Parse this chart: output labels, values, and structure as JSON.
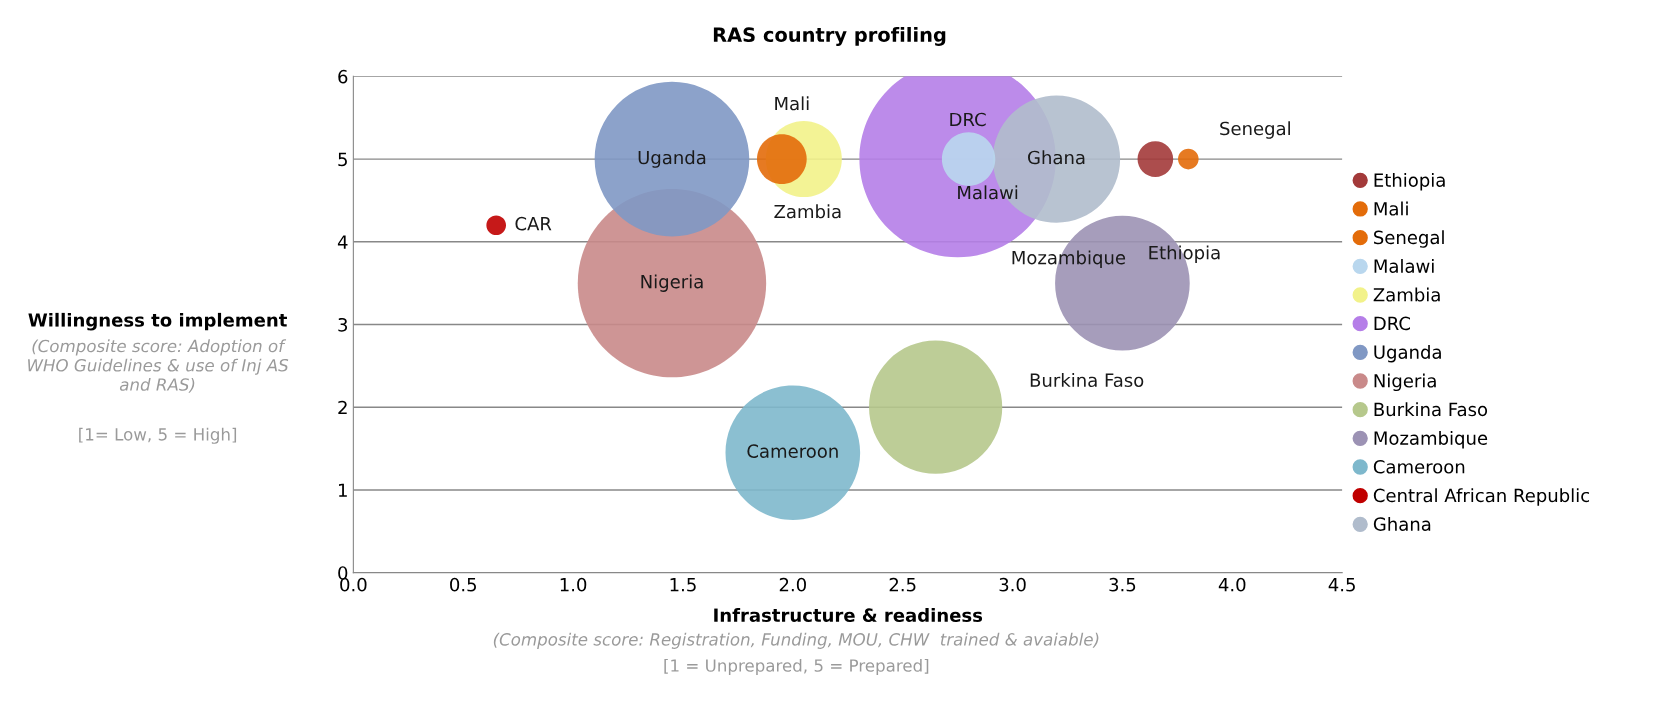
{
  "chart_data": {
    "type": "bubble",
    "title": "RAS country profiling",
    "xlabel": "Infrastructure & readiness",
    "ylabel": "Willingness to implement",
    "xlim": [
      0,
      4.5
    ],
    "xticks": [
      {
        "value": 0,
        "label": "0.0"
      },
      {
        "value": 0.5,
        "label": "0.5"
      },
      {
        "value": 1,
        "label": "1.0"
      },
      {
        "value": 1.5,
        "label": "1.5"
      },
      {
        "value": 2,
        "label": "2.0"
      },
      {
        "value": 2.5,
        "label": "2.5"
      },
      {
        "value": 3,
        "label": "3.0"
      },
      {
        "value": 3.5,
        "label": "3.5"
      },
      {
        "value": 4,
        "label": "4.0"
      },
      {
        "value": 4.5,
        "label": "4.5"
      }
    ],
    "ylim": [
      0,
      6
    ],
    "yticks": [
      0,
      1,
      2,
      3,
      4,
      5,
      6
    ],
    "grid": "y",
    "legend": "right",
    "marker": "circle",
    "series": [
      {
        "name": "Ethiopia",
        "color": "#a33a3a",
        "x": [
          3.65
        ],
        "values": [
          5
        ],
        "sizes": [
          0.033
        ]
      },
      {
        "name": "Mali",
        "color": "#e36c0a",
        "x": [
          1.95
        ],
        "values": [
          5
        ],
        "sizes": [
          0.064
        ]
      },
      {
        "name": "Senegal",
        "color": "#e36c0a",
        "x": [
          3.8
        ],
        "values": [
          5
        ],
        "sizes": [
          0.011
        ]
      },
      {
        "name": "Malawi",
        "color": "#b9d7ee",
        "x": [
          2.8
        ],
        "values": [
          5
        ],
        "sizes": [
          0.074
        ]
      },
      {
        "name": "Zambia",
        "color": "#f2f28a",
        "x": [
          2.05
        ],
        "values": [
          5
        ],
        "sizes": [
          0.15
        ]
      },
      {
        "name": "DRC",
        "color": "#b57ee8",
        "x": [
          2.75
        ],
        "values": [
          5
        ],
        "sizes": [
          1
        ]
      },
      {
        "name": "Uganda",
        "color": "#8098c4",
        "x": [
          1.45
        ],
        "values": [
          5
        ],
        "sizes": [
          0.62
        ]
      },
      {
        "name": "Nigeria",
        "color": "#c98a8a",
        "x": [
          1.45
        ],
        "values": [
          3.5
        ],
        "sizes": [
          0.92
        ]
      },
      {
        "name": "Burkina Faso",
        "color": "#b6c88c",
        "x": [
          2.65
        ],
        "values": [
          2
        ],
        "sizes": [
          0.46
        ]
      },
      {
        "name": "Mozambique",
        "color": "#9c92b4",
        "x": [
          3.5
        ],
        "values": [
          3.5
        ],
        "sizes": [
          0.47
        ]
      },
      {
        "name": "Cameroon",
        "color": "#7eb8cc",
        "x": [
          2
        ],
        "values": [
          1.45
        ],
        "sizes": [
          0.47
        ]
      },
      {
        "name": "Central African Republic",
        "color": "#c00000",
        "x": [
          0.65
        ],
        "values": [
          4.2
        ],
        "sizes": [
          0.01
        ]
      },
      {
        "name": "Ghana",
        "color": "#b0bccc",
        "x": [
          3.2
        ],
        "values": [
          5
        ],
        "sizes": [
          0.42
        ]
      }
    ],
    "annotations": [
      "(Composite score: Adoption of\nWHO Guidelines & use of Inj AS\nand RAS)",
      "[1= Low, 5 = High]",
      "(Composite score: Registration, Funding, MOU, CHW  trained & avaiable)",
      "[1 = Unprepared, 5 = Prepared]",
      "Burkina Faso",
      {
        "text": "Mali",
        "x": 1.95,
        "y": 5
      },
      {
        "text": "Zambia",
        "x": 2.05,
        "y": 5
      },
      {
        "text": "CAR",
        "x": 0.65,
        "y": 4.2
      },
      {
        "text": "Uganda",
        "x": 1.45,
        "y": 5
      },
      {
        "text": "Nigeria",
        "x": 1.45,
        "y": 3.5
      },
      {
        "text": "DRC",
        "x": 2.75,
        "y": 5
      },
      {
        "text": "Ghana",
        "x": 3.2,
        "y": 5
      },
      {
        "text": "Malawi",
        "x": 2.8,
        "y": 5
      },
      {
        "text": "Senegal",
        "x": 3.8,
        "y": 5
      },
      {
        "text": "Mozambique",
        "x": 3.5,
        "y": 3.5
      },
      {
        "text": "Ethiopia",
        "x": 3.5,
        "y": 3.5
      },
      {
        "text": "Cameroon",
        "x": 2.0,
        "y": 1.45
      }
    ]
  }
}
